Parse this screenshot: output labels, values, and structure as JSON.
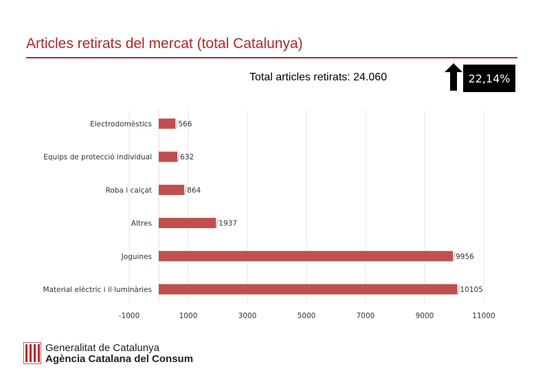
{
  "slide": {
    "title": "Articles retirats del mercat (total Catalunya)",
    "total_label": "Total articles retirats: 24.060",
    "change_pct": "22,14%",
    "change_icon": "up-arrow-icon",
    "accent_color": "#b3262b"
  },
  "chart_data": {
    "type": "bar",
    "orientation": "horizontal",
    "categories": [
      "Electrodomèstics",
      "Equips de protecció individual",
      "Roba i calçat",
      "Altres",
      "Joguines",
      "Material elèctric i il·luminàries"
    ],
    "values": [
      566,
      632,
      864,
      1937,
      9956,
      10105
    ],
    "value_labels": [
      "566",
      "632",
      "864",
      "1937",
      "9956",
      "10105"
    ],
    "xlim": [
      -1000,
      11000
    ],
    "x_ticks": [
      -1000,
      1000,
      3000,
      5000,
      7000,
      9000,
      11000
    ],
    "x_tick_labels": [
      "-1000",
      "1000",
      "3000",
      "5000",
      "7000",
      "9000",
      "11000"
    ],
    "grid": true,
    "bar_color": "#c0504d",
    "title": "",
    "xlabel": "",
    "ylabel": ""
  },
  "footer": {
    "org_line1": "Generalitat de Catalunya",
    "org_line2": "Agència Catalana del Consum",
    "logo_icon": "generalitat-logo-icon"
  }
}
